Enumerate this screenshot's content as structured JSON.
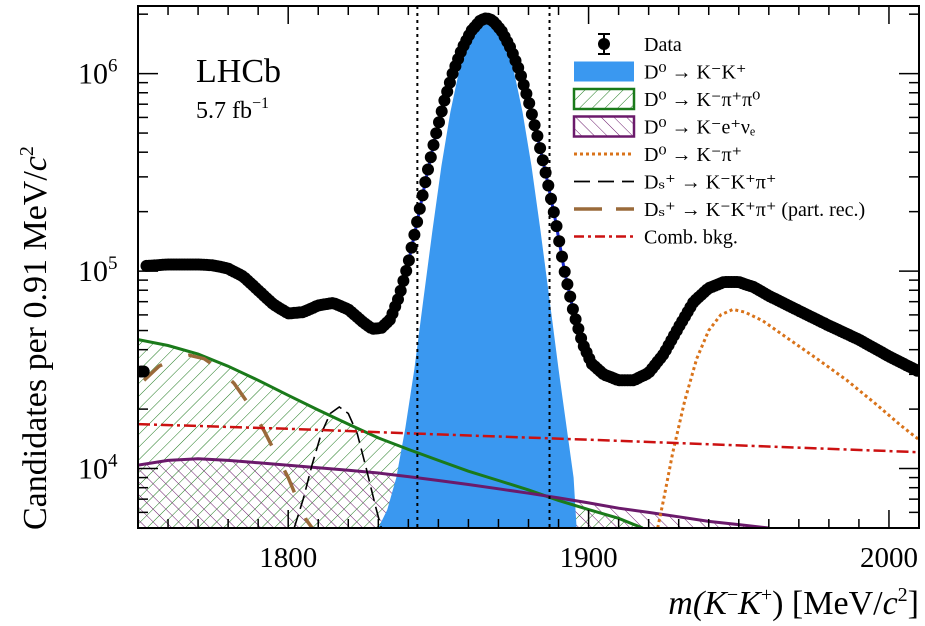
{
  "chart_data": {
    "type": "line",
    "yscale": "log",
    "xlim": [
      1750,
      2010
    ],
    "ylim": [
      5000,
      2200000
    ],
    "x_ticks": [
      1800,
      1900,
      2000
    ],
    "y_ticks": [
      {
        "value": 10000,
        "mantissa": "10",
        "exponent": "4"
      },
      {
        "value": 100000,
        "mantissa": "10",
        "exponent": "5"
      },
      {
        "value": 1000000,
        "mantissa": "10",
        "exponent": "6"
      }
    ],
    "xlabel": {
      "pre": "m(K",
      "sup1": "−",
      "mid": "K",
      "sup2": "+",
      "post": ") [MeV/",
      "c": "c",
      "sup3": "2",
      "end": "]"
    },
    "ylabel": {
      "pre": "Candidates per  0.91 MeV/",
      "c": "c",
      "sup": "2"
    },
    "experiment": "LHCb",
    "luminosity": {
      "value": "5.7 fb",
      "sup": "−1"
    },
    "signal_window": [
      1843,
      1887
    ],
    "legend": [
      {
        "style": "data",
        "label": "Data"
      },
      {
        "style": "fill-blue",
        "label": "D⁰ → K⁻K⁺"
      },
      {
        "style": "hatch-green",
        "label": "D⁰ → K⁻π⁺π⁰"
      },
      {
        "style": "hatch-purple",
        "label": "D⁰ → K⁻e⁺νₑ"
      },
      {
        "style": "dotted-orange",
        "label": "D⁰ → K⁻π⁺"
      },
      {
        "style": "dashed-black",
        "label": "Dₛ⁺ → K⁻K⁺π⁺"
      },
      {
        "style": "longdash-brown",
        "label": "Dₛ⁺ → K⁻K⁺π⁺ (part. rec.)"
      },
      {
        "style": "dashdot-red",
        "label": "Comb. bkg."
      }
    ],
    "series": [
      {
        "name": "Data",
        "points": [
          [
            1752,
            106000
          ],
          [
            1760,
            108000
          ],
          [
            1770,
            108000
          ],
          [
            1775,
            107000
          ],
          [
            1780,
            103000
          ],
          [
            1785,
            94000
          ],
          [
            1790,
            80000
          ],
          [
            1795,
            68000
          ],
          [
            1800,
            61000
          ],
          [
            1805,
            62000
          ],
          [
            1810,
            67000
          ],
          [
            1815,
            69000
          ],
          [
            1820,
            64000
          ],
          [
            1825,
            55000
          ],
          [
            1828,
            51000
          ],
          [
            1831,
            51500
          ],
          [
            1834,
            57000
          ],
          [
            1837,
            75000
          ],
          [
            1840,
            110000
          ],
          [
            1843,
            180000
          ],
          [
            1846,
            300000
          ],
          [
            1849,
            480000
          ],
          [
            1852,
            730000
          ],
          [
            1855,
            1030000
          ],
          [
            1858,
            1350000
          ],
          [
            1861,
            1650000
          ],
          [
            1864,
            1860000
          ],
          [
            1866,
            1910000
          ],
          [
            1868,
            1860000
          ],
          [
            1871,
            1650000
          ],
          [
            1874,
            1350000
          ],
          [
            1877,
            1030000
          ],
          [
            1880,
            730000
          ],
          [
            1883,
            480000
          ],
          [
            1886,
            300000
          ],
          [
            1889,
            180000
          ],
          [
            1892,
            100000
          ],
          [
            1895,
            62000
          ],
          [
            1898,
            43000
          ],
          [
            1901,
            34000
          ],
          [
            1905,
            30000
          ],
          [
            1910,
            28000
          ],
          [
            1915,
            28000
          ],
          [
            1920,
            30500
          ],
          [
            1925,
            38000
          ],
          [
            1930,
            52000
          ],
          [
            1935,
            70000
          ],
          [
            1940,
            82000
          ],
          [
            1945,
            88000
          ],
          [
            1950,
            88000
          ],
          [
            1955,
            83000
          ],
          [
            1960,
            75000
          ],
          [
            1970,
            63000
          ],
          [
            1980,
            53000
          ],
          [
            1990,
            45000
          ],
          [
            2000,
            37000
          ],
          [
            2010,
            31000
          ]
        ]
      },
      {
        "name": "D⁰ → K⁻K⁺",
        "points": [
          [
            1830,
            5000
          ],
          [
            1833,
            6200
          ],
          [
            1836,
            9000
          ],
          [
            1839,
            16000
          ],
          [
            1842,
            32000
          ],
          [
            1845,
            72000
          ],
          [
            1848,
            160000
          ],
          [
            1851,
            340000
          ],
          [
            1854,
            640000
          ],
          [
            1857,
            1050000
          ],
          [
            1860,
            1450000
          ],
          [
            1863,
            1760000
          ],
          [
            1866,
            1880000
          ],
          [
            1869,
            1760000
          ],
          [
            1872,
            1450000
          ],
          [
            1875,
            1050000
          ],
          [
            1878,
            640000
          ],
          [
            1881,
            340000
          ],
          [
            1884,
            160000
          ],
          [
            1887,
            72000
          ],
          [
            1890,
            32000
          ],
          [
            1893,
            15000
          ],
          [
            1895,
            9000
          ],
          [
            1896,
            5000
          ]
        ]
      },
      {
        "name": "D⁰ → K⁻π⁺π⁰",
        "points": [
          [
            1750,
            45000
          ],
          [
            1760,
            42000
          ],
          [
            1770,
            38000
          ],
          [
            1780,
            33000
          ],
          [
            1790,
            28000
          ],
          [
            1800,
            23500
          ],
          [
            1810,
            19800
          ],
          [
            1820,
            16800
          ],
          [
            1830,
            14300
          ],
          [
            1840,
            12500
          ],
          [
            1850,
            11000
          ],
          [
            1860,
            9700
          ],
          [
            1870,
            8700
          ],
          [
            1880,
            7800
          ],
          [
            1890,
            6900
          ],
          [
            1900,
            6200
          ],
          [
            1910,
            5600
          ],
          [
            1918,
            5000
          ]
        ]
      },
      {
        "name": "D⁰ → K⁻e⁺νₑ",
        "points": [
          [
            1750,
            10400
          ],
          [
            1760,
            11000
          ],
          [
            1770,
            11200
          ],
          [
            1780,
            11000
          ],
          [
            1790,
            10700
          ],
          [
            1800,
            10400
          ],
          [
            1810,
            10100
          ],
          [
            1820,
            9800
          ],
          [
            1830,
            9500
          ],
          [
            1840,
            9100
          ],
          [
            1850,
            8700
          ],
          [
            1860,
            8300
          ],
          [
            1870,
            7900
          ],
          [
            1880,
            7500
          ],
          [
            1890,
            7100
          ],
          [
            1900,
            6700
          ],
          [
            1910,
            6300
          ],
          [
            1920,
            6000
          ],
          [
            1930,
            5700
          ],
          [
            1940,
            5400
          ],
          [
            1950,
            5200
          ],
          [
            1960,
            5000
          ]
        ]
      },
      {
        "name": "D⁰ → K⁻π⁺",
        "points": [
          [
            1923,
            5000
          ],
          [
            1925,
            7000
          ],
          [
            1928,
            12000
          ],
          [
            1932,
            22000
          ],
          [
            1936,
            36000
          ],
          [
            1940,
            50000
          ],
          [
            1944,
            60000
          ],
          [
            1948,
            64000
          ],
          [
            1952,
            62000
          ],
          [
            1958,
            56000
          ],
          [
            1966,
            46000
          ],
          [
            1976,
            36000
          ],
          [
            1986,
            28000
          ],
          [
            1996,
            21000
          ],
          [
            2004,
            16500
          ],
          [
            2010,
            14000
          ]
        ]
      },
      {
        "name": "Dₛ⁺ → K⁻K⁺π⁺",
        "points": [
          [
            1802,
            5000
          ],
          [
            1805,
            7000
          ],
          [
            1808,
            10500
          ],
          [
            1811,
            15000
          ],
          [
            1814,
            19000
          ],
          [
            1817,
            20500
          ],
          [
            1820,
            19000
          ],
          [
            1823,
            15000
          ],
          [
            1826,
            10000
          ],
          [
            1829,
            6500
          ],
          [
            1831,
            5000
          ]
        ]
      },
      {
        "name": "Dₛ⁺ → K⁻K⁺π⁺ (part. rec.)",
        "points": [
          [
            1752,
            28000
          ],
          [
            1757,
            33000
          ],
          [
            1762,
            36000
          ],
          [
            1767,
            37500
          ],
          [
            1772,
            36000
          ],
          [
            1777,
            32000
          ],
          [
            1782,
            27000
          ],
          [
            1787,
            21000
          ],
          [
            1792,
            15500
          ],
          [
            1797,
            11000
          ],
          [
            1800,
            9000
          ],
          [
            1803,
            7000
          ],
          [
            1806,
            5500
          ],
          [
            1808,
            5000
          ]
        ]
      },
      {
        "name": "Comb. bkg.",
        "points": [
          [
            1750,
            16800
          ],
          [
            1800,
            15900
          ],
          [
            1850,
            14900
          ],
          [
            1900,
            14000
          ],
          [
            1950,
            13100
          ],
          [
            2010,
            12100
          ]
        ]
      }
    ]
  }
}
